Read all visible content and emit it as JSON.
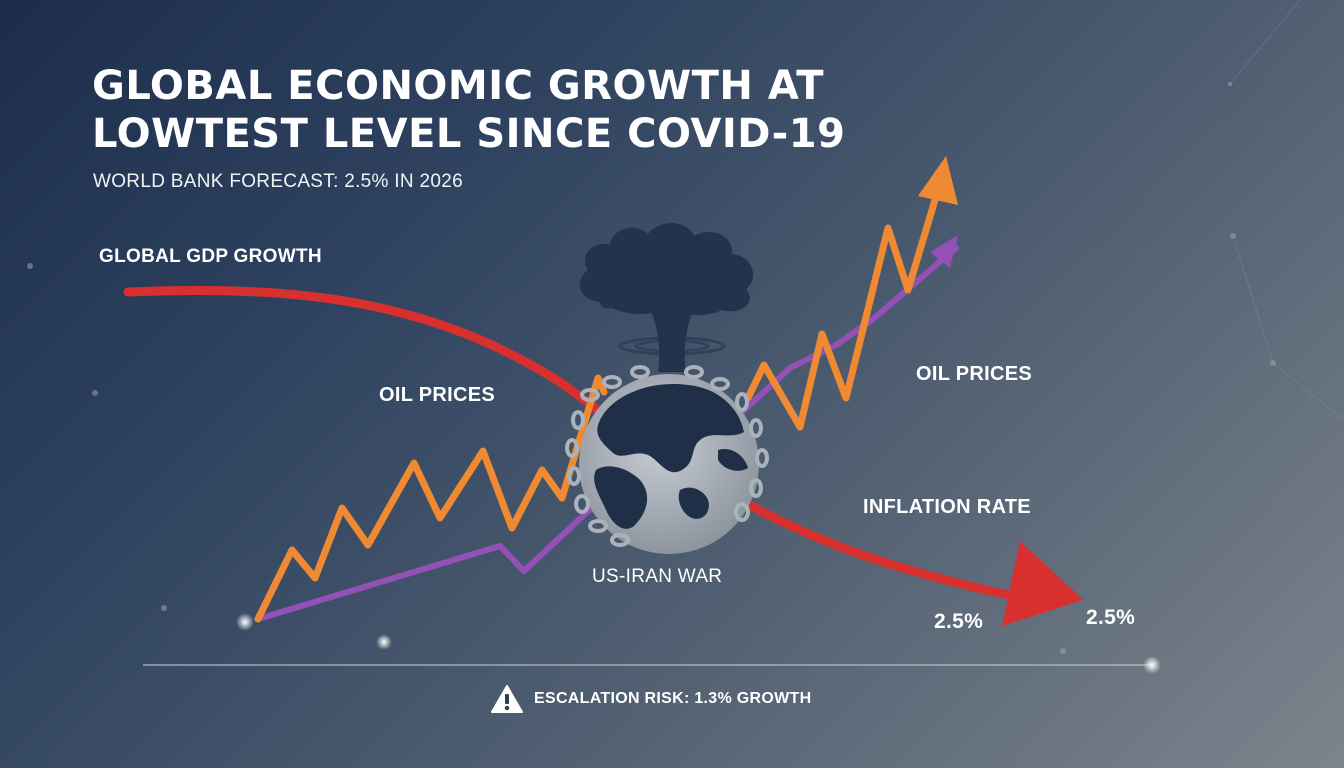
{
  "header": {
    "title": "GLOBAL ECONOMIC GROWTH AT LOWTEST LEVEL SINCE COVID-19",
    "subtitle": "WORLD BANK FORECAST: 2.5% IN 2026"
  },
  "labels": {
    "gdp": "GLOBAL GDP GROWTH",
    "oil_left": "OIL PRICES",
    "oil_right": "OIL PRICES",
    "inflation": "INFLATION RATE",
    "war": "US-IRAN WAR",
    "value_a": "2.5%",
    "value_b": "2.5%"
  },
  "footer": {
    "risk_text": "ESCALATION RISK: 1.3% GROWTH",
    "risk_icon": "warning-triangle-icon"
  },
  "icons": [
    "mushroom-cloud-icon",
    "chained-globe-icon",
    "warning-triangle-icon"
  ],
  "colors": {
    "gdp_line": "#d8302e",
    "oil_line": "#ef8a33",
    "inflation_line": "#9351b8",
    "text": "#ffffff"
  }
}
